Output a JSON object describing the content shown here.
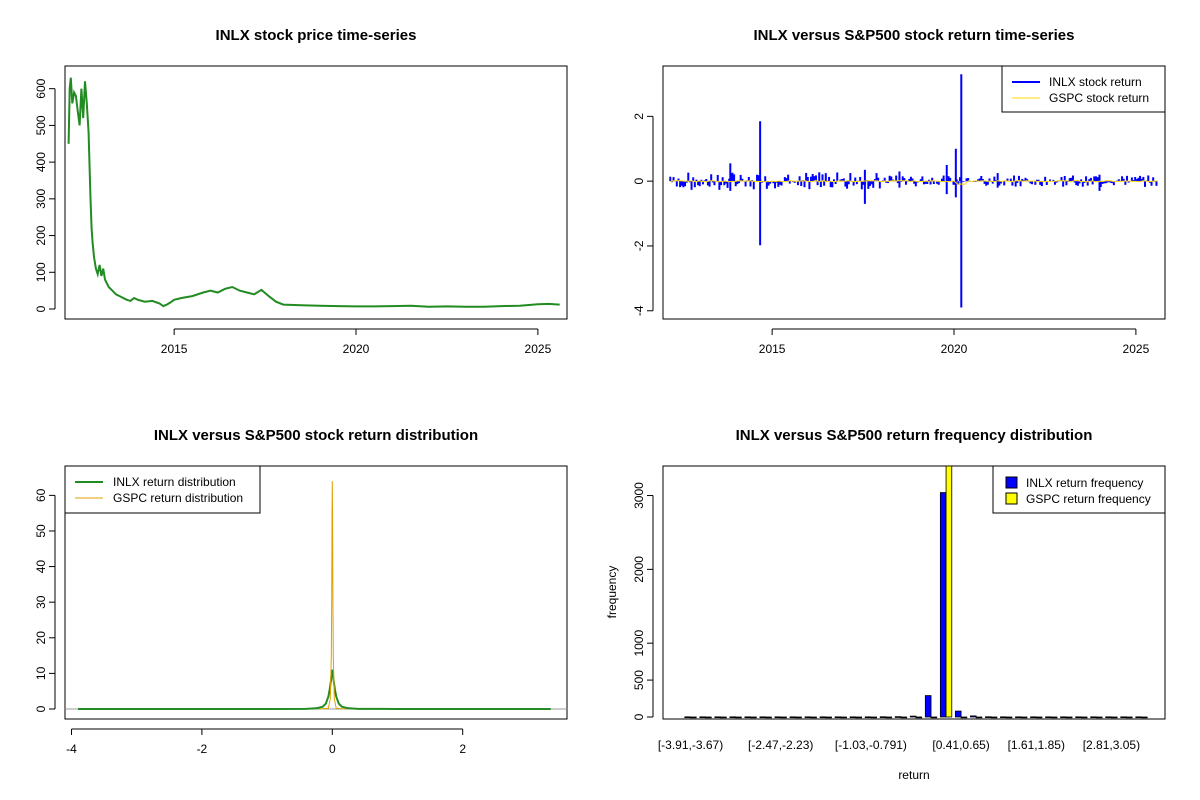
{
  "chart_data": [
    {
      "id": "price",
      "type": "line",
      "title": "INLX stock price time-series",
      "xlabel": "",
      "ylabel": "",
      "xlim": [
        2012.0,
        2025.8
      ],
      "ylim": [
        0,
        640
      ],
      "xticks": [
        2015,
        2020,
        2025
      ],
      "yticks": [
        0,
        100,
        200,
        300,
        400,
        500,
        600
      ],
      "series": [
        {
          "color": "#228B22",
          "x": [
            2012.1,
            2012.13,
            2012.16,
            2012.2,
            2012.25,
            2012.3,
            2012.35,
            2012.4,
            2012.45,
            2012.5,
            2012.55,
            2012.6,
            2012.65,
            2012.7,
            2012.73,
            2012.76,
            2012.8,
            2012.85,
            2012.9,
            2012.95,
            2013.0,
            2013.05,
            2013.1,
            2013.2,
            2013.3,
            2013.4,
            2013.5,
            2013.6,
            2013.7,
            2013.8,
            2013.9,
            2014.0,
            2014.2,
            2014.4,
            2014.6,
            2014.7,
            2014.8,
            2014.9,
            2015.0,
            2015.2,
            2015.5,
            2015.8,
            2016.0,
            2016.2,
            2016.4,
            2016.6,
            2016.8,
            2017.0,
            2017.2,
            2017.4,
            2017.6,
            2017.8,
            2018.0,
            2018.5,
            2019.0,
            2019.5,
            2020.0,
            2020.5,
            2021.0,
            2021.5,
            2022.0,
            2022.5,
            2023.0,
            2023.5,
            2024.0,
            2024.5,
            2025.0,
            2025.3,
            2025.6
          ],
          "y": [
            450,
            600,
            630,
            560,
            590,
            580,
            540,
            500,
            600,
            520,
            620,
            560,
            480,
            300,
            220,
            180,
            140,
            110,
            95,
            120,
            90,
            110,
            80,
            60,
            50,
            40,
            35,
            30,
            25,
            22,
            30,
            25,
            20,
            22,
            15,
            8,
            12,
            18,
            25,
            30,
            35,
            45,
            50,
            45,
            55,
            60,
            50,
            45,
            40,
            52,
            35,
            20,
            12,
            10,
            9,
            8,
            7,
            7,
            8,
            9,
            6,
            7,
            6,
            6,
            8,
            9,
            13,
            14,
            12
          ]
        }
      ]
    },
    {
      "id": "returns",
      "type": "line",
      "title": "INLX versus S&P500 stock return time-series",
      "xlabel": "",
      "ylabel": "",
      "xlim": [
        2012.0,
        2025.8
      ],
      "ylim": [
        -4.1,
        3.4
      ],
      "xticks": [
        2015,
        2020,
        2025
      ],
      "yticks": [
        -4,
        -2,
        0,
        2
      ],
      "legend_position": "top-right",
      "series": [
        {
          "name": "INLX stock return",
          "color": "#0000FF"
        },
        {
          "name": "GSPC stock return",
          "color": "#FFD700"
        }
      ],
      "inlx_spikes": [
        {
          "x": 2014.67,
          "lo": -1.98,
          "hi": 1.85
        },
        {
          "x": 2020.2,
          "lo": -3.9,
          "hi": 3.3
        },
        {
          "x": 2020.05,
          "lo": -0.5,
          "hi": 1.0
        },
        {
          "x": 2017.55,
          "lo": -0.7,
          "hi": 0.35
        },
        {
          "x": 2013.85,
          "lo": -0.3,
          "hi": 0.55
        },
        {
          "x": 2019.8,
          "lo": -0.4,
          "hi": 0.5
        },
        {
          "x": 2018.5,
          "lo": -0.2,
          "hi": 0.3
        },
        {
          "x": 2024.0,
          "lo": -0.3,
          "hi": 0.2
        },
        {
          "x": 2021.2,
          "lo": -0.2,
          "hi": 0.25
        }
      ]
    },
    {
      "id": "density",
      "type": "line",
      "title": "INLX versus S&P500 stock return distribution",
      "xlabel": "",
      "ylabel": "",
      "xlim": [
        -4.1,
        3.6
      ],
      "ylim": [
        0,
        66
      ],
      "xticks": [
        -4,
        -2,
        0,
        2
      ],
      "yticks": [
        0,
        10,
        20,
        30,
        40,
        50,
        60
      ],
      "legend_position": "top-left",
      "series": [
        {
          "name": "INLX return distribution",
          "color": "#228B22",
          "x": [
            -3.9,
            -1.0,
            -0.4,
            -0.25,
            -0.15,
            -0.1,
            -0.06,
            -0.04,
            -0.02,
            -0.01,
            0.0,
            0.01,
            0.02,
            0.04,
            0.06,
            0.1,
            0.15,
            0.25,
            0.4,
            1.0,
            3.35
          ],
          "y": [
            0,
            0,
            0.05,
            0.2,
            0.6,
            1.5,
            3.5,
            5.5,
            8,
            10,
            11,
            10,
            8,
            5.5,
            3.5,
            1.5,
            0.6,
            0.2,
            0.05,
            0,
            0
          ]
        },
        {
          "name": "GSPC return distribution",
          "color": "#E0A000",
          "x": [
            -0.2,
            -0.06,
            -0.03,
            -0.015,
            -0.008,
            -0.004,
            0.0,
            0.004,
            0.008,
            0.015,
            0.03,
            0.06,
            0.2
          ],
          "y": [
            0,
            0.2,
            3,
            15,
            35,
            55,
            64,
            55,
            35,
            15,
            3,
            0.2,
            0
          ]
        }
      ]
    },
    {
      "id": "frequency",
      "type": "bar",
      "title": "INLX versus S&P500 return frequency distribution",
      "xlabel": "return",
      "ylabel": "frequency",
      "ylim": [
        0,
        3400
      ],
      "yticks": [
        0,
        500,
        1000,
        2000,
        3000
      ],
      "legend_position": "top-right",
      "category_labels_shown": [
        "[-3.91,-3.67)",
        "[-2.47,-2.23)",
        "[-1.03,-0.791)",
        "[0.41,0.65)",
        "[1.61,1.85)",
        "[2.81,3.05)"
      ],
      "category_label_indices": [
        0,
        6,
        12,
        18,
        23,
        28
      ],
      "num_bins": 31,
      "series": [
        {
          "name": "INLX return frequency",
          "color": "#0000FF",
          "values": [
            2,
            2,
            2,
            2,
            2,
            2,
            2,
            2,
            2,
            2,
            2,
            2,
            2,
            3,
            5,
            12,
            290,
            3040,
            80,
            15,
            3,
            2,
            2,
            2,
            2,
            2,
            2,
            2,
            2,
            2,
            2
          ]
        },
        {
          "name": "GSPC return frequency",
          "color": "#FFFF00",
          "values": [
            0,
            0,
            0,
            0,
            0,
            0,
            0,
            0,
            0,
            0,
            0,
            0,
            0,
            0,
            0,
            0,
            0,
            3450,
            0,
            0,
            0,
            0,
            0,
            0,
            0,
            0,
            0,
            0,
            0,
            0,
            0
          ]
        }
      ]
    }
  ]
}
